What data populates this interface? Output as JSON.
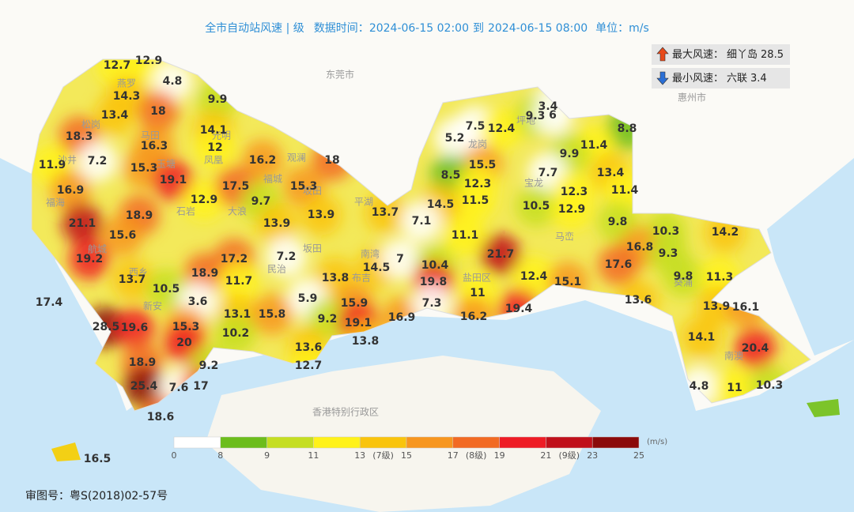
{
  "header": {
    "title": "全市自动站风速 | 级",
    "time_label": "数据时间：",
    "start": "2024-06-15 02:00",
    "to": "到",
    "end": "2024-06-15 08:00",
    "unit_label": "单位：",
    "unit": "m/s"
  },
  "extremes": [
    {
      "label": "最大风速：",
      "station": "细丫岛",
      "value": 28.5
    },
    {
      "label": "最小风速：",
      "station": "六联",
      "value": 3.4
    }
  ],
  "stations": [
    12.7,
    12.9,
    4.8,
    14.3,
    9.9,
    18,
    13.4,
    14.1,
    18.3,
    16.3,
    12,
    11.9,
    7.2,
    15.3,
    19.1,
    16.2,
    18,
    16.9,
    12.9,
    17.5,
    15.3,
    9.7,
    21.1,
    18.9,
    13.9,
    13.7,
    13.9,
    15.6,
    19.2,
    17.2,
    7.2,
    18.9,
    13.7,
    10.5,
    11.7,
    13.8,
    14.5,
    7,
    5.9,
    15.9,
    17.4,
    3.6,
    13.1,
    15.8,
    9.2,
    19.1,
    16.9,
    28.5,
    19.6,
    15.3,
    10.2,
    13.8,
    20,
    13.6,
    12.7,
    18.9,
    9.2,
    25.4,
    7.6,
    17,
    18.6,
    16.5,
    5.2,
    7.5,
    12.4,
    3.4,
    9.3,
    6,
    8.8,
    11.4,
    9.9,
    15.5,
    7.7,
    13.4,
    8.5,
    12.3,
    12.3,
    11.4,
    11.5,
    14.5,
    10.5,
    12.9,
    7.1,
    9.8,
    10.3,
    14.2,
    11.1,
    16.8,
    9.3,
    21.7,
    10.4,
    17.6,
    12.4,
    15.1,
    9.8,
    11.3,
    19.8,
    11,
    7.3,
    13.6,
    13.9,
    16.1,
    19.4,
    16.2,
    14.1,
    20.4,
    4.8,
    11,
    10.3
  ],
  "places": [
    "东莞市",
    "惠州市",
    "香港特别行政区",
    "燕罗",
    "松岗",
    "马田",
    "光明",
    "玉塘",
    "凤凰",
    "观澜",
    "福城",
    "沙井",
    "福海",
    "石岩",
    "大浪",
    "民治",
    "航城",
    "西乡",
    "新安",
    "平湖",
    "坂田",
    "布吉",
    "龙岗",
    "坪地",
    "宝龙",
    "马峦",
    "盐田区",
    "葵涌",
    "南澳",
    "坂田",
    "南湾"
  ],
  "legend": {
    "edges": [
      0,
      8,
      9,
      11,
      13,
      15,
      17,
      19,
      21,
      23,
      25
    ],
    "colors": [
      "#ffffff",
      "#6cbd1c",
      "#c5de22",
      "#fff21a",
      "#f9c40c",
      "#f7961f",
      "#f26a23",
      "#ee1c25",
      "#c0101a",
      "#8b0a0a"
    ],
    "levels": [
      "(7级)",
      "(8级)",
      "(9级)"
    ],
    "unit": "(m/s)"
  },
  "footer": "审图号：粤S(2018)02-57号"
}
